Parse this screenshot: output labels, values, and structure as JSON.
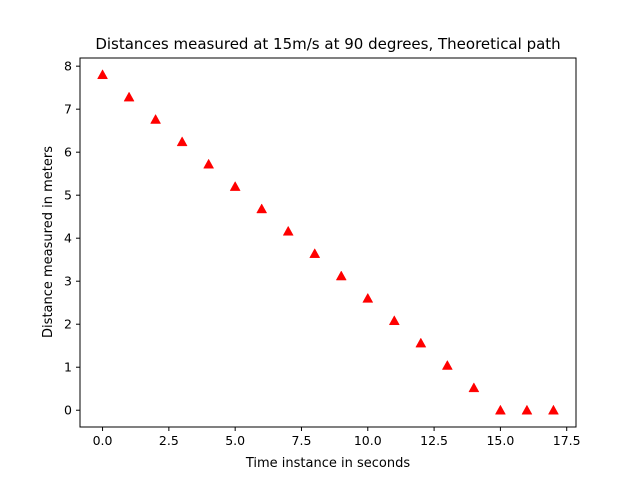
{
  "chart_data": {
    "type": "scatter",
    "title": "Distances measured at 15m/s at 90 degrees, Theoretical path",
    "xlabel": "Time instance in seconds",
    "ylabel": "Distance measured in meters",
    "xlim": [
      -0.85,
      17.85
    ],
    "ylim": [
      -0.39,
      8.19
    ],
    "xticks": [
      0.0,
      2.5,
      5.0,
      7.5,
      10.0,
      12.5,
      15.0,
      17.5
    ],
    "xtick_labels": [
      "0.0",
      "2.5",
      "5.0",
      "7.5",
      "10.0",
      "12.5",
      "15.0",
      "17.5"
    ],
    "yticks": [
      0,
      1,
      2,
      3,
      4,
      5,
      6,
      7,
      8
    ],
    "ytick_labels": [
      "0",
      "1",
      "2",
      "3",
      "4",
      "5",
      "6",
      "7",
      "8"
    ],
    "grid": false,
    "marker": "triangle-up",
    "marker_color": "#ff0000",
    "x": [
      0,
      1,
      2,
      3,
      4,
      5,
      6,
      7,
      8,
      9,
      10,
      11,
      12,
      13,
      14,
      15,
      16,
      17
    ],
    "y": [
      7.8,
      7.28,
      6.76,
      6.24,
      5.72,
      5.2,
      4.68,
      4.16,
      3.64,
      3.12,
      2.6,
      2.08,
      1.56,
      1.04,
      0.52,
      0.0,
      0.0,
      0.0
    ]
  }
}
